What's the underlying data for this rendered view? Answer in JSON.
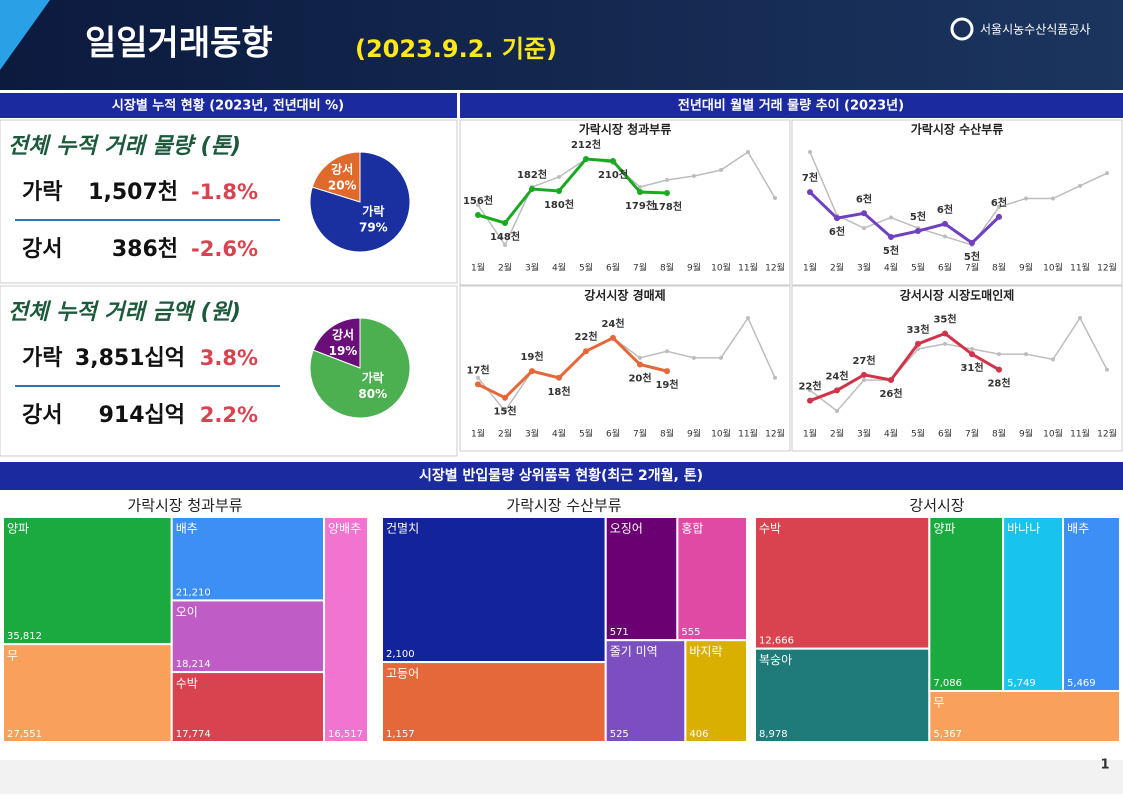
{
  "header": {
    "title": "일일거래동향",
    "date": "(2023.9.2. 기준)",
    "org": "서울시농수산식품공사"
  },
  "sections": [
    "시장별 누적 현황 (2023년, 전년대비 %)",
    "전년대비 월별 거래 물량 추이 (2023년)",
    "시장별 반입물량 상위품목 현황(최근 2개월, 톤)"
  ],
  "kpis": [
    {
      "title": "전체 누적 거래 물량 (톤)",
      "rows": [
        {
          "market": "가락",
          "value": "1,507천",
          "change": "-1.8%"
        },
        {
          "market": "강서",
          "value": "386천",
          "change": "-2.6%"
        }
      ]
    },
    {
      "title": "전체 누적 거래 금액 (원)",
      "rows": [
        {
          "market": "가락",
          "value": "3,851십억",
          "change": "3.8%"
        },
        {
          "market": "강서",
          "value": "914십억",
          "change": "2.2%"
        }
      ]
    }
  ],
  "chart_data": [
    {
      "type": "pie",
      "categories": [
        "강서",
        "가락"
      ],
      "values": [
        20,
        79
      ],
      "value_labels": [
        "20%",
        "79%"
      ],
      "colors": [
        "#e06a2c",
        "#1a2fa0"
      ]
    },
    {
      "type": "pie",
      "categories": [
        "강서",
        "가락"
      ],
      "values": [
        19,
        80
      ],
      "value_labels": [
        "19%",
        "80%"
      ],
      "colors": [
        "#6a0f7a",
        "#4caf50"
      ]
    },
    {
      "type": "line",
      "title": "가락시장 청과부류",
      "categories": [
        "1월",
        "2월",
        "3월",
        "4월",
        "5월",
        "6월",
        "7월",
        "8월",
        "9월",
        "10월",
        "11월",
        "12월"
      ],
      "series": [
        {
          "color": "#bdbdbd",
          "values": [
            166,
            126,
            184,
            194,
            212,
            208,
            184,
            191,
            195,
            201,
            219,
            173
          ]
        },
        {
          "color": "#1aaa22",
          "values": [
            156,
            148,
            182,
            180,
            212,
            210,
            179,
            178,
            null,
            null,
            null,
            null
          ],
          "value_labels": [
            "156천",
            "148천",
            "182천",
            "180천",
            "212천",
            "210천",
            "179천",
            "178천",
            null,
            null,
            null,
            null
          ]
        }
      ]
    },
    {
      "type": "line",
      "title": "가락시장 수산부류",
      "categories": [
        "1월",
        "2월",
        "3월",
        "4월",
        "5월",
        "6월",
        "7월",
        "8월",
        "9월",
        "10월",
        "11월",
        "12월"
      ],
      "series": [
        {
          "color": "#bdbdbd",
          "values": [
            9.1,
            6.1,
            5.5,
            6.0,
            5.5,
            5.1,
            4.7,
            6.5,
            6.9,
            6.9,
            7.5,
            8.1
          ]
        },
        {
          "color": "#7040c0",
          "values": [
            7.2,
            5.97,
            6.2,
            5.08,
            5.36,
            5.7,
            4.8,
            6.03,
            null,
            null,
            null,
            null
          ],
          "value_labels": [
            "7천",
            "6천",
            "6천",
            "5천",
            "5천",
            "6천",
            "5천",
            "6천",
            null,
            null,
            null,
            null
          ]
        }
      ]
    },
    {
      "type": "line",
      "title": "강서시장 경매제",
      "categories": [
        "1월",
        "2월",
        "3월",
        "4월",
        "5월",
        "6월",
        "7월",
        "8월",
        "9월",
        "10월",
        "11월",
        "12월"
      ],
      "series": [
        {
          "color": "#bdbdbd",
          "values": [
            18,
            13,
            19,
            18,
            22,
            24,
            21,
            22,
            21,
            21,
            27,
            18
          ]
        },
        {
          "color": "#e4683a",
          "values": [
            17,
            15,
            19,
            18,
            22,
            24,
            20,
            19,
            null,
            null,
            null,
            null
          ],
          "value_labels": [
            "17천",
            "15천",
            "19천",
            "18천",
            "22천",
            "24천",
            "20천",
            "19천",
            null,
            null,
            null,
            null
          ]
        }
      ]
    },
    {
      "type": "line",
      "title": "강서시장 시장도매인제",
      "categories": [
        "1월",
        "2월",
        "3월",
        "4월",
        "5월",
        "6월",
        "7월",
        "8월",
        "9월",
        "10월",
        "11월",
        "12월"
      ],
      "series": [
        {
          "color": "#bdbdbd",
          "values": [
            24,
            20,
            26,
            26,
            32,
            33,
            32,
            31,
            31,
            30,
            38,
            28
          ]
        },
        {
          "color": "#d0344a",
          "values": [
            22,
            24,
            27,
            26,
            33,
            35,
            31,
            28,
            null,
            null,
            null,
            null
          ],
          "value_labels": [
            "22천",
            "24천",
            "27천",
            "26천",
            "33천",
            "35천",
            "31천",
            "28천",
            null,
            null,
            null,
            null
          ]
        }
      ]
    },
    {
      "type": "treemap",
      "title": "가락시장 청과부류",
      "categories": [
        "양파",
        "무",
        "배추",
        "오이",
        "수박",
        "양배추"
      ],
      "values": [
        35812,
        27551,
        21210,
        18214,
        17774,
        16517
      ],
      "value_labels": [
        "35,812",
        "27,551",
        "21,210",
        "18,214",
        "17,774",
        "16,517"
      ],
      "colors": [
        "#1aaa3f",
        "#f9a05a",
        "#3b8ff5",
        "#bf5cc6",
        "#d9434f",
        "#f175d0"
      ]
    },
    {
      "type": "treemap",
      "title": "가락시장 수산부류",
      "categories": [
        "건멸치",
        "고등어",
        "오징어",
        "홍합",
        "줄기 미역",
        "바지락"
      ],
      "values": [
        2100,
        1157,
        571,
        555,
        525,
        406
      ],
      "value_labels": [
        "2,100",
        "1,157",
        "571",
        "555",
        "525",
        "406"
      ],
      "colors": [
        "#13239b",
        "#e4683a",
        "#6b0073",
        "#e04aa5",
        "#7c4fc1",
        "#d9b000"
      ]
    },
    {
      "type": "treemap",
      "title": "강서시장",
      "categories": [
        "수박",
        "복숭아",
        "양파",
        "바나나",
        "배추",
        "무"
      ],
      "values": [
        12666,
        8978,
        7086,
        5749,
        5469,
        5367
      ],
      "value_labels": [
        "12,666",
        "8,978",
        "7,086",
        "5,749",
        "5,469",
        "5,367"
      ],
      "colors": [
        "#d9434f",
        "#1f7a7a",
        "#1aaa3f",
        "#18c3ec",
        "#3b8ff5",
        "#f9a05a"
      ]
    }
  ],
  "page": "1"
}
